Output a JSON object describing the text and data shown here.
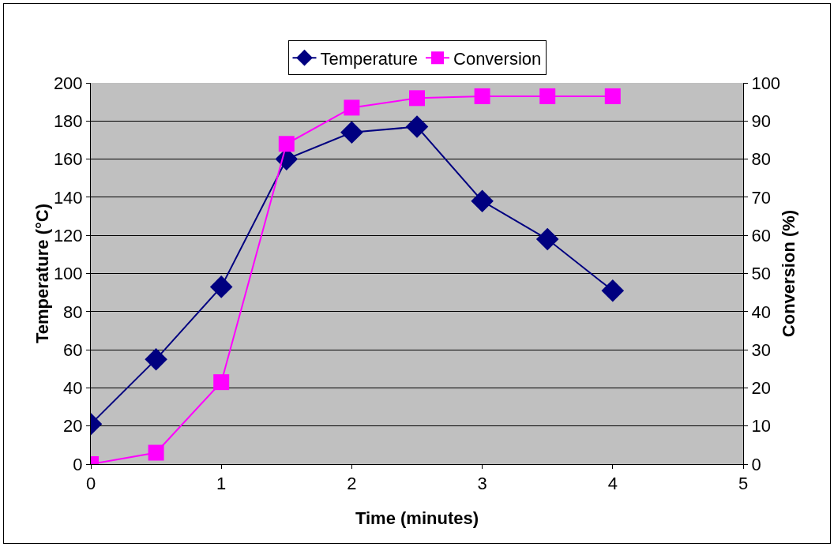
{
  "chart_data": {
    "type": "line",
    "xlabel": "Time (minutes)",
    "ylabel": "Temperature (°C)",
    "y2label": "Conversion (%)",
    "x": [
      0,
      0.5,
      1,
      1.5,
      2,
      2.5,
      3,
      3.5,
      4
    ],
    "series": [
      {
        "name": "Temperature",
        "color": "#000080",
        "marker": "diamond",
        "values": [
          21,
          55,
          93,
          160,
          174,
          177,
          138,
          118,
          91
        ]
      },
      {
        "name": "Conversion",
        "color": "#ff00ff",
        "marker": "square",
        "axis": "y2",
        "values": [
          0,
          3,
          21.5,
          84,
          93.5,
          96,
          96.5,
          96.5,
          96.5
        ]
      }
    ],
    "xlim": [
      0,
      5
    ],
    "xticks": [
      0,
      1,
      2,
      3,
      4,
      5
    ],
    "ylim": [
      0,
      200
    ],
    "yticks": [
      0,
      20,
      40,
      60,
      80,
      100,
      120,
      140,
      160,
      180,
      200
    ],
    "y2lim": [
      0,
      100
    ],
    "y2ticks": [
      0,
      10,
      20,
      30,
      40,
      50,
      60,
      70,
      80,
      90,
      100
    ],
    "grid": "y",
    "legend": "top",
    "line_style": "solid"
  }
}
